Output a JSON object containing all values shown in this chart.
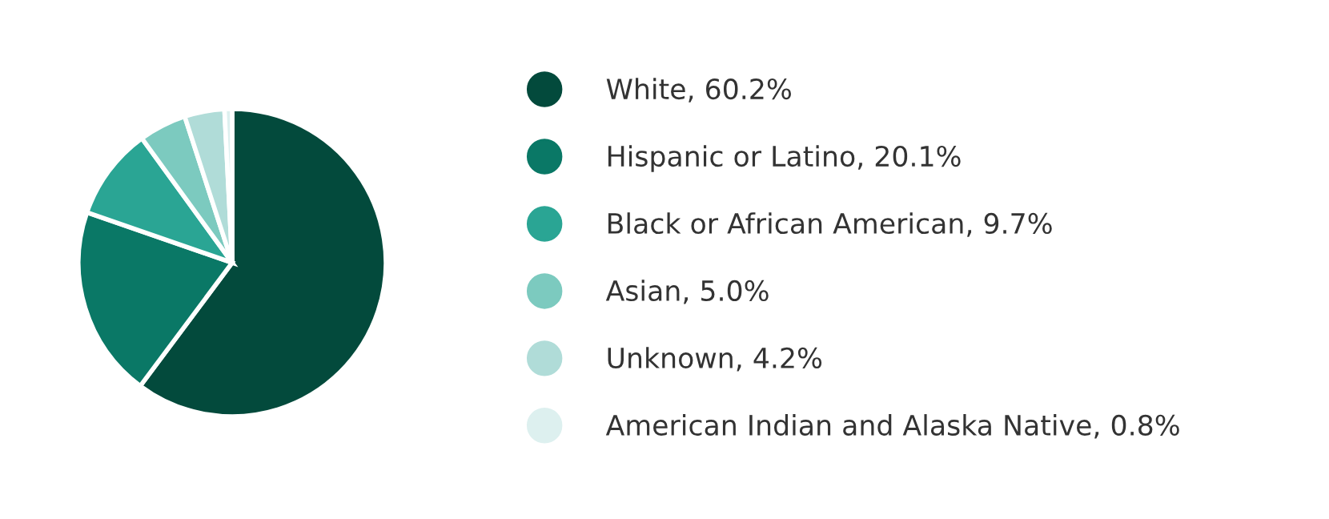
{
  "chart_data": {
    "type": "pie",
    "categories": [
      "White, 60.2%",
      "Hispanic or Latino, 20.1%",
      "Black or African American, 9.7%",
      "Asian, 5.0%",
      "Unknown, 4.2%",
      "American Indian and Alaska Native, 0.8%"
    ],
    "values": [
      60.2,
      20.1,
      9.7,
      5.0,
      4.2,
      0.8
    ],
    "colors": [
      "#034a3c",
      "#0a7866",
      "#2aa594",
      "#7ccabf",
      "#b0dcd8",
      "#ddf0ef"
    ],
    "legend": "right"
  }
}
